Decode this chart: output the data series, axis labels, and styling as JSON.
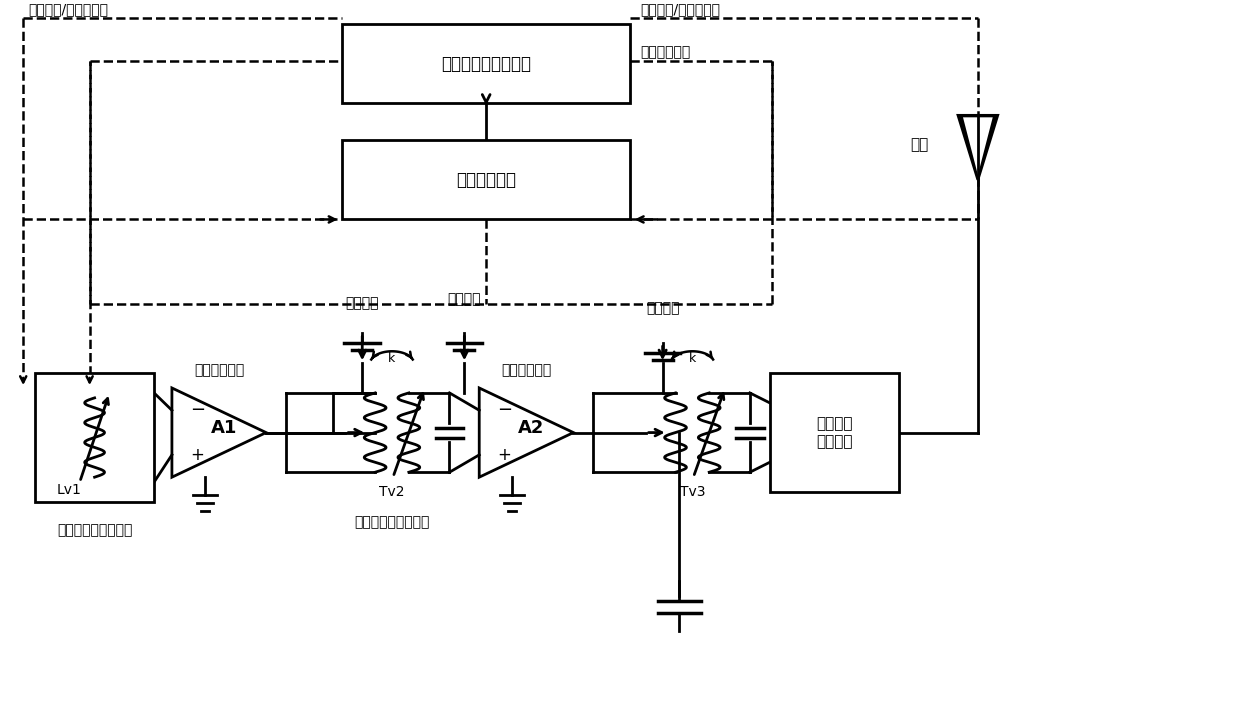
{
  "bg_color": "#ffffff",
  "line_color": "#000000",
  "dashed_color": "#000000",
  "text_color": "#000000",
  "box1_label": "控制及偏置产生电路",
  "box2_label": "包络检测电路",
  "box3_label": "天线阻抗\n变换网络",
  "label_lv1": "Lv1",
  "label_tv2": "Tv2",
  "label_tv3": "Tv3",
  "label_k1": "k",
  "label_k2": "k",
  "label_A1": "A1",
  "label_A2": "A2",
  "label_antenna": "天线",
  "label_top_left": "可变电感/变压器调节",
  "label_top_right": "可变电感/变压器调节",
  "label_bias_ctrl": "偏置控制信号",
  "label_pwr1": "电源电压",
  "label_bias_v": "偏置电压",
  "label_pwr2": "电源电压",
  "label_amp1": "晶体管放大器",
  "label_amp2": "晶体管放大器",
  "label_input": "输入耦合及阻抗匹配",
  "label_inter": "级间耦合及阻抗匹配",
  "figsize": [
    12.4,
    7.27
  ],
  "dpi": 100
}
